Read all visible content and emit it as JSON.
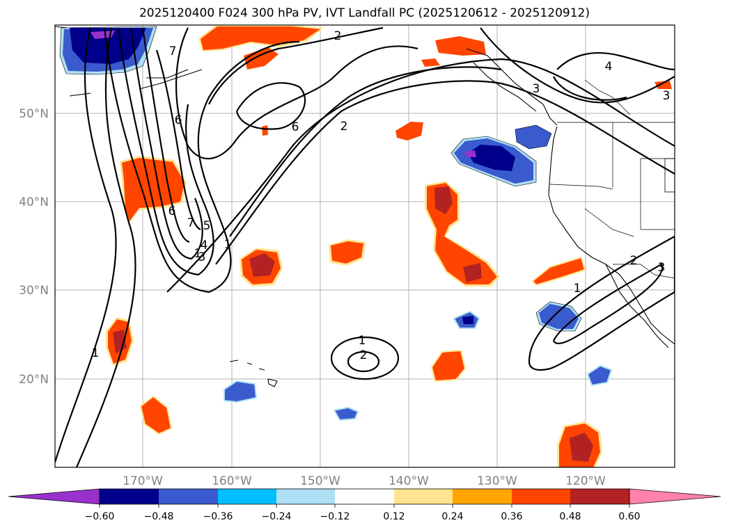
{
  "title": "2025120400 F024 300 hPa PV, IVT Landfall PC (2025120612 - 2025120912)",
  "map": {
    "lon_ticks": [
      "170°W",
      "160°W",
      "150°W",
      "140°W",
      "130°W",
      "120°W"
    ],
    "lat_ticks": [
      "50°N",
      "40°N",
      "30°N",
      "20°N"
    ],
    "grid": true
  },
  "contour_labels": [
    "1",
    "1",
    "1",
    "1",
    "1",
    "2",
    "2",
    "2",
    "2",
    "3",
    "3",
    "3",
    "3",
    "4",
    "4",
    "5",
    "6",
    "6",
    "6",
    "7",
    "7"
  ],
  "colorbar": {
    "ticks": [
      "−0.60",
      "−0.48",
      "−0.36",
      "−0.24",
      "−0.12",
      "0.12",
      "0.24",
      "0.36",
      "0.48",
      "0.60"
    ],
    "colors": [
      "#9932CC",
      "#00008B",
      "#3A5BCD",
      "#00BFFF",
      "#ADDFF5",
      "#FFFFFF",
      "#FFE58F",
      "#FFA500",
      "#FF4500",
      "#B22222",
      "#FF82AB"
    ]
  }
}
